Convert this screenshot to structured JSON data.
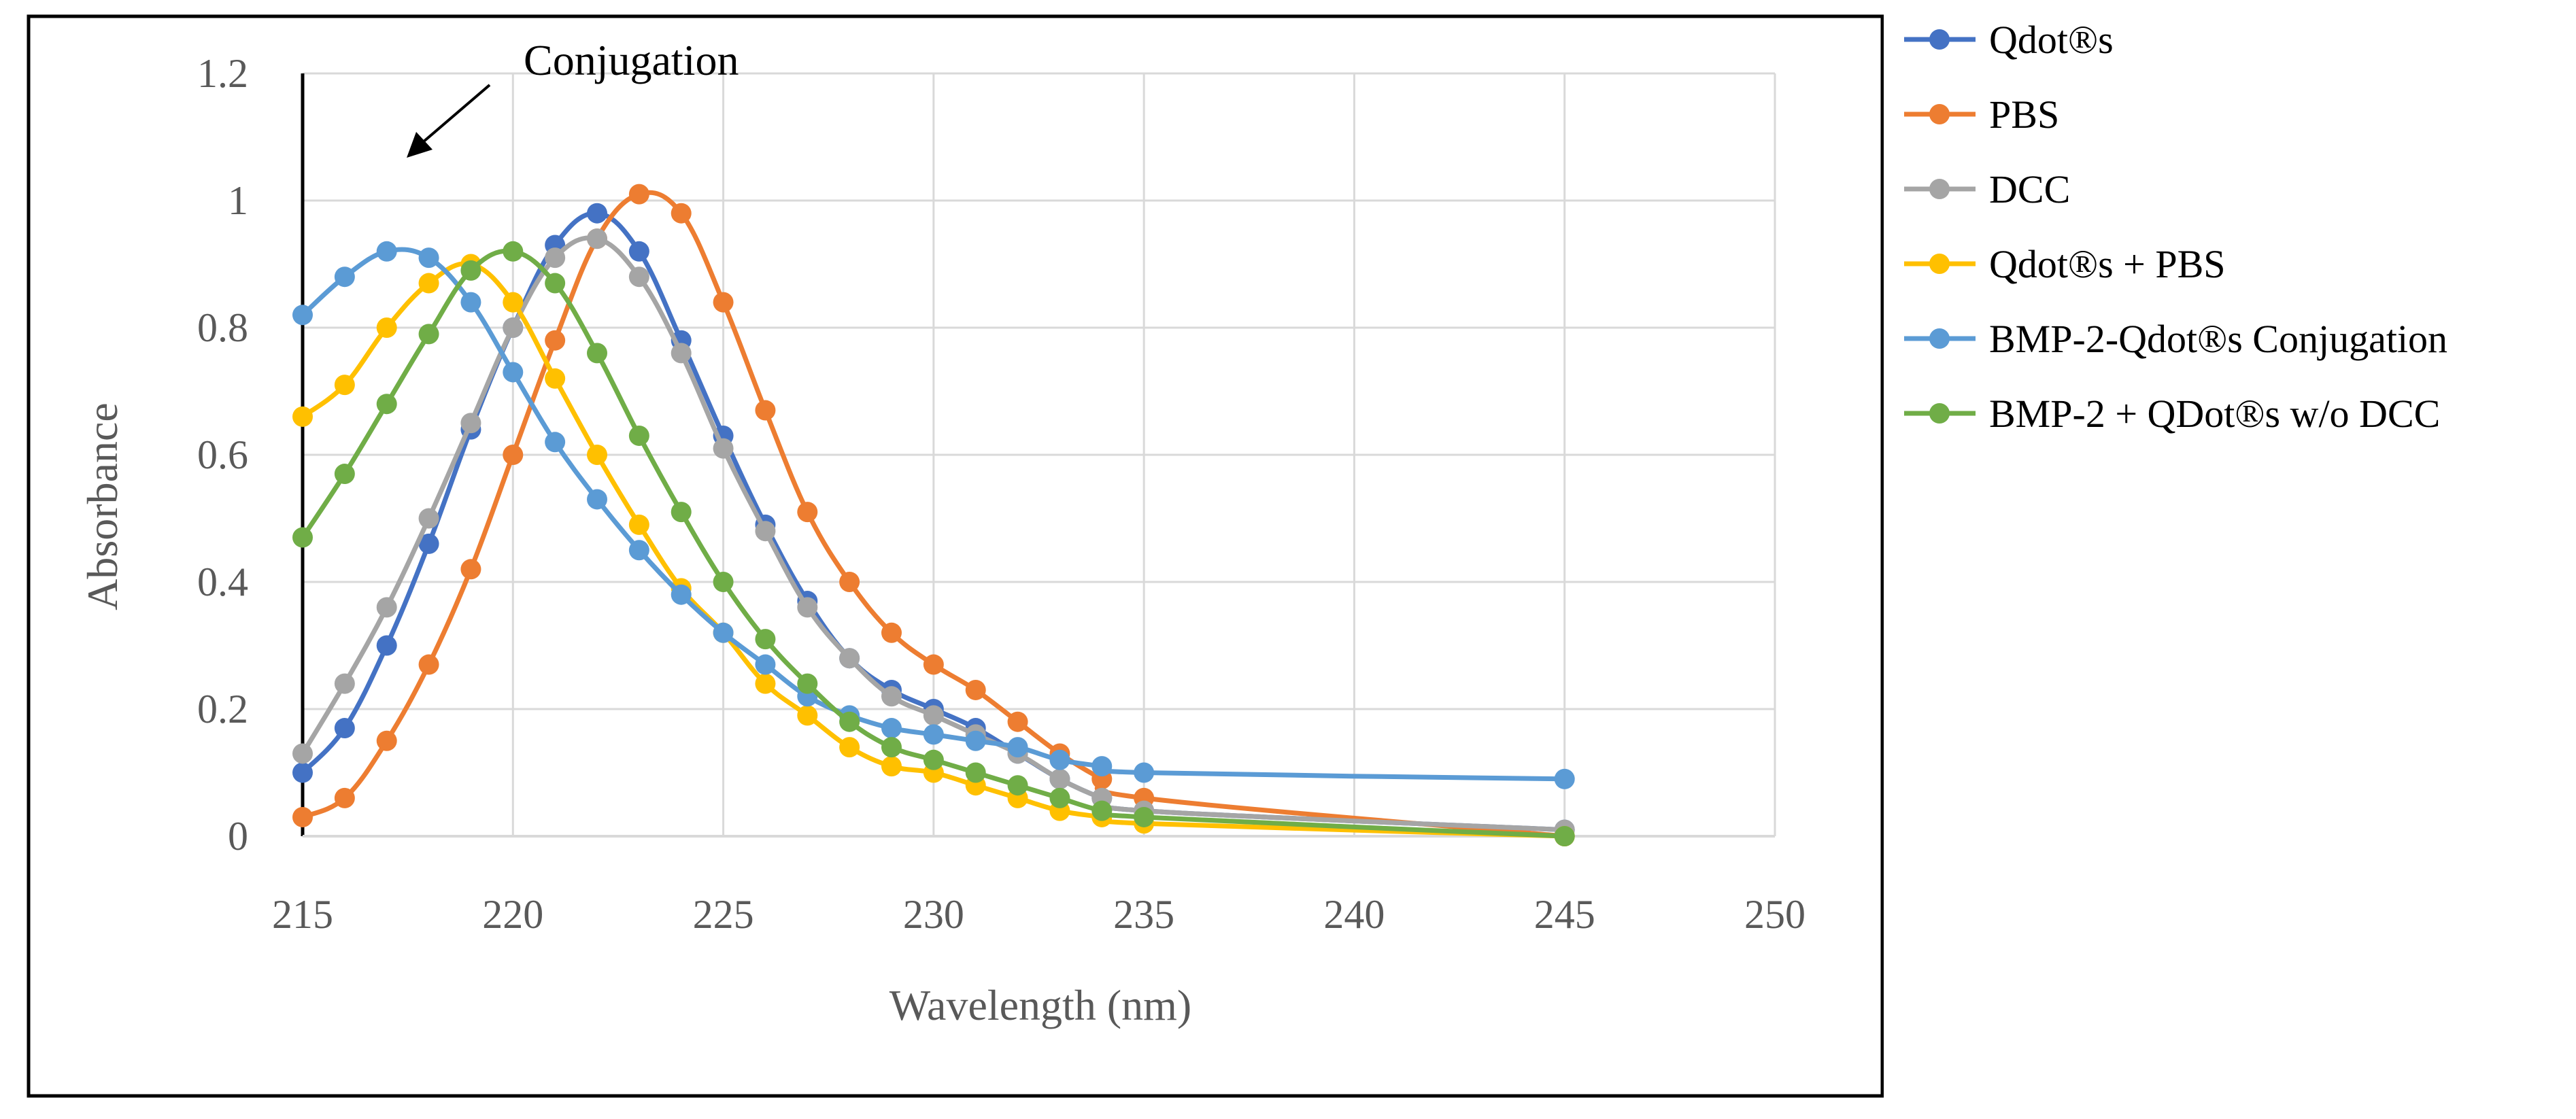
{
  "chart_data": {
    "type": "line",
    "title": "",
    "xlabel": "Wavelength (nm)",
    "ylabel": "Absorbance",
    "xlim": [
      215,
      250
    ],
    "ylim": [
      0,
      1.2
    ],
    "x_ticks": [
      "215",
      "220",
      "225",
      "230",
      "235",
      "240",
      "245",
      "250"
    ],
    "y_ticks": [
      "0",
      "0.2",
      "0.4",
      "0.6",
      "0.8",
      "1",
      "1.2"
    ],
    "grid": true,
    "legend_position": "right",
    "annotation": "Conjugation",
    "x": [
      215,
      216,
      217,
      218,
      219,
      220,
      221,
      222,
      223,
      224,
      225,
      226,
      227,
      228,
      229,
      230,
      231,
      232,
      233,
      234,
      235,
      245
    ],
    "series": [
      {
        "name": "Qdot®s",
        "color": "#4472C4",
        "values": [
          0.1,
          0.17,
          0.3,
          0.46,
          0.64,
          0.8,
          0.93,
          0.98,
          0.92,
          0.78,
          0.63,
          0.49,
          0.37,
          0.28,
          0.23,
          0.2,
          0.17,
          0.13,
          0.09,
          0.06,
          0.04,
          0.01
        ]
      },
      {
        "name": "PBS",
        "color": "#ED7D31",
        "values": [
          0.03,
          0.06,
          0.15,
          0.27,
          0.42,
          0.6,
          0.78,
          0.94,
          1.01,
          0.98,
          0.84,
          0.67,
          0.51,
          0.4,
          0.32,
          0.27,
          0.23,
          0.18,
          0.13,
          0.09,
          0.06,
          0.0
        ]
      },
      {
        "name": "DCC",
        "color": "#A5A5A5",
        "values": [
          0.13,
          0.24,
          0.36,
          0.5,
          0.65,
          0.8,
          0.91,
          0.94,
          0.88,
          0.76,
          0.61,
          0.48,
          0.36,
          0.28,
          0.22,
          0.19,
          0.16,
          0.13,
          0.09,
          0.06,
          0.04,
          0.01
        ]
      },
      {
        "name": "Qdot®s + PBS",
        "color": "#FFC000",
        "values": [
          0.66,
          0.71,
          0.8,
          0.87,
          0.9,
          0.84,
          0.72,
          0.6,
          0.49,
          0.39,
          0.32,
          0.24,
          0.19,
          0.14,
          0.11,
          0.1,
          0.08,
          0.06,
          0.04,
          0.03,
          0.02,
          0.0
        ]
      },
      {
        "name": "BMP-2-Qdot®s Conjugation",
        "color": "#5B9BD5",
        "values": [
          0.82,
          0.88,
          0.92,
          0.91,
          0.84,
          0.73,
          0.62,
          0.53,
          0.45,
          0.38,
          0.32,
          0.27,
          0.22,
          0.19,
          0.17,
          0.16,
          0.15,
          0.14,
          0.12,
          0.11,
          0.1,
          0.09
        ]
      },
      {
        "name": "BMP-2 + QDot®s w/o DCC",
        "color": "#70AD47",
        "values": [
          0.47,
          0.57,
          0.68,
          0.79,
          0.89,
          0.92,
          0.87,
          0.76,
          0.63,
          0.51,
          0.4,
          0.31,
          0.24,
          0.18,
          0.14,
          0.12,
          0.1,
          0.08,
          0.06,
          0.04,
          0.03,
          0.0
        ]
      }
    ]
  }
}
